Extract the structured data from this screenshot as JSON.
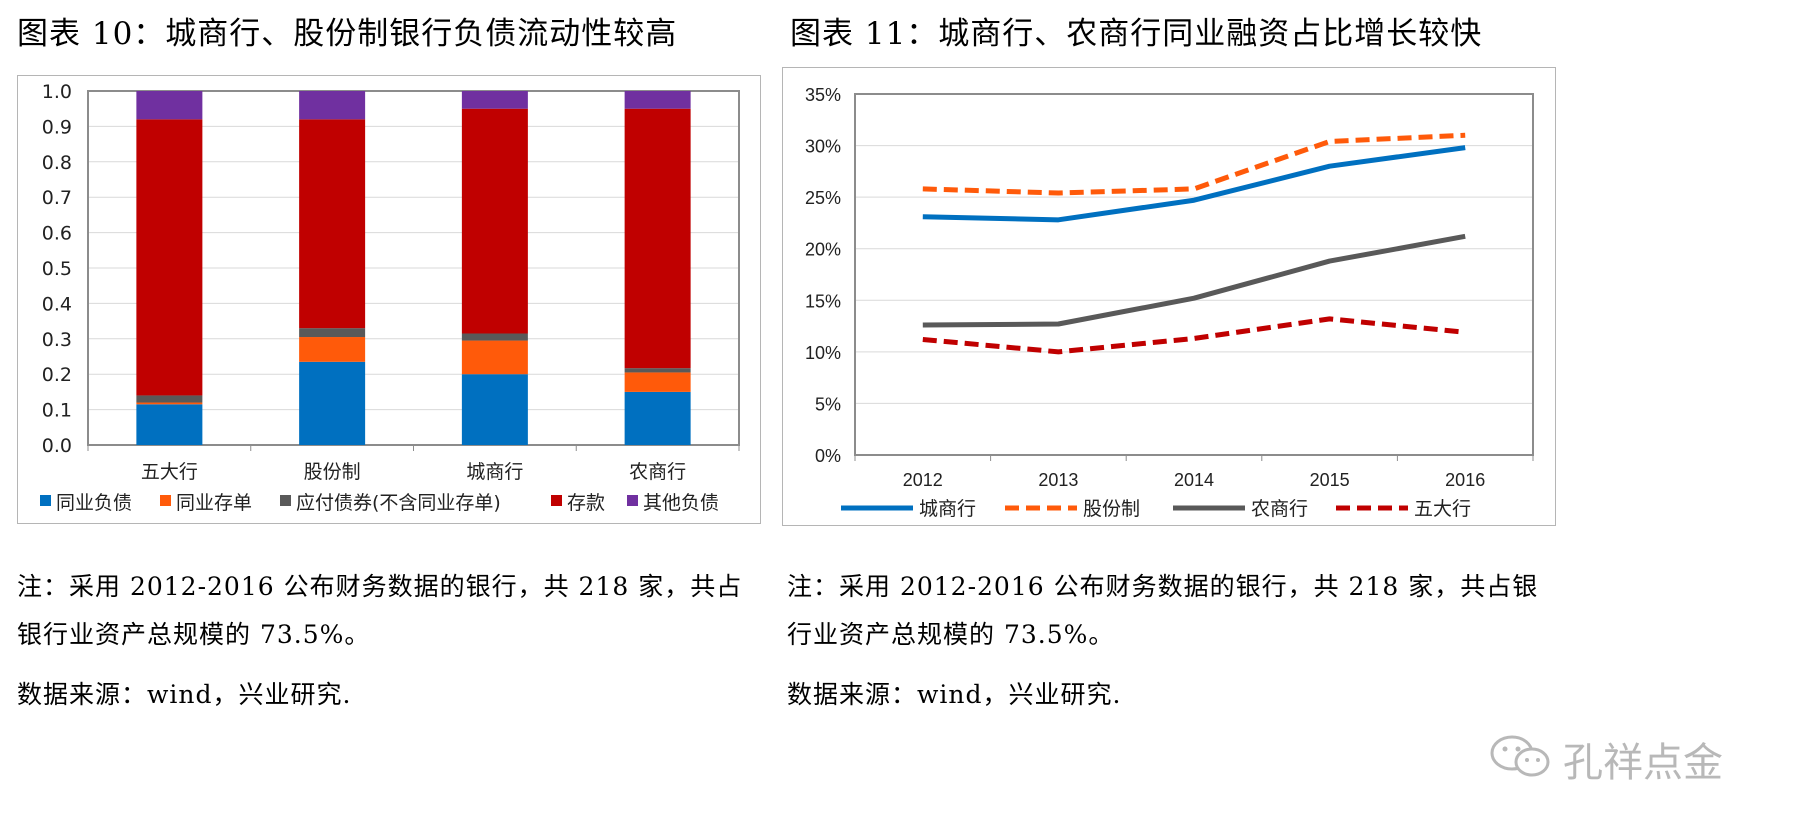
{
  "left": {
    "title": "图表 10：城商行、股份制银行负债流动性较高",
    "note": "注：采用 2012-2016 公布财务数据的银行，共 218 家，共占银行业资产总规模的 73.5%。",
    "source": "数据来源：wind，兴业研究."
  },
  "right": {
    "title": "图表 11：城商行、农商行同业融资占比增长较快",
    "note": "注：采用 2012-2016 公布财务数据的银行，共 218 家，共占银行业资产总规模的 73.5%。",
    "source": "数据来源：wind，兴业研究."
  },
  "watermark": "孔祥点金",
  "chart_data": [
    {
      "type": "bar",
      "stacked": true,
      "categories": [
        "五大行",
        "股份制",
        "城商行",
        "农商行"
      ],
      "series": [
        {
          "name": "同业负债",
          "color": "#0070C0",
          "values": [
            0.115,
            0.235,
            0.2,
            0.15
          ]
        },
        {
          "name": "同业存单",
          "color": "#FF5A0A",
          "values": [
            0.005,
            0.07,
            0.095,
            0.055
          ]
        },
        {
          "name": "应付债券(不含同业存单)",
          "color": "#595959",
          "values": [
            0.02,
            0.025,
            0.02,
            0.012
          ]
        },
        {
          "name": "存款",
          "color": "#C00000",
          "values": [
            0.78,
            0.59,
            0.635,
            0.733
          ]
        },
        {
          "name": "其他负债",
          "color": "#7030A0",
          "values": [
            0.08,
            0.08,
            0.05,
            0.05
          ]
        }
      ],
      "ylim": [
        0,
        1.0
      ],
      "yticks": [
        "0.0",
        "0.1",
        "0.2",
        "0.3",
        "0.4",
        "0.5",
        "0.6",
        "0.7",
        "0.8",
        "0.9",
        "1.0"
      ],
      "grid": true,
      "legend": "bottom"
    },
    {
      "type": "line",
      "x": [
        "2012",
        "2013",
        "2014",
        "2015",
        "2016"
      ],
      "series": [
        {
          "name": "城商行",
          "color": "#0070C0",
          "dash": "solid",
          "values": [
            23.1,
            22.8,
            24.7,
            28.0,
            29.8
          ]
        },
        {
          "name": "股份制",
          "color": "#FF5A0A",
          "dash": "dashed",
          "values": [
            25.8,
            25.4,
            25.8,
            30.4,
            31.0
          ]
        },
        {
          "name": "农商行",
          "color": "#595959",
          "dash": "solid",
          "values": [
            12.6,
            12.7,
            15.2,
            18.8,
            21.2
          ]
        },
        {
          "name": "五大行",
          "color": "#C00000",
          "dash": "dashed",
          "values": [
            11.2,
            10.0,
            11.3,
            13.2,
            11.9
          ]
        }
      ],
      "ylim": [
        0,
        35
      ],
      "yticks": [
        "0%",
        "5%",
        "10%",
        "15%",
        "20%",
        "25%",
        "30%",
        "35%"
      ],
      "grid": true,
      "legend": "bottom"
    }
  ]
}
